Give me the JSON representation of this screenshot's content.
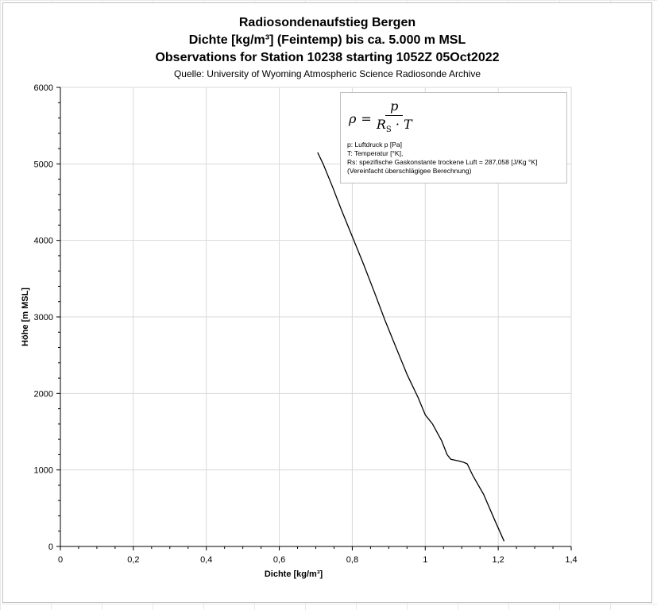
{
  "chart_data": {
    "type": "line",
    "title": [
      "Radiosondenaufstieg Bergen",
      "Dichte [kg/m³] (Feintemp) bis ca. 5.000 m MSL",
      "Observations for Station 10238 starting 1052Z 05Oct2022"
    ],
    "subtitle": "Quelle: University of Wyoming Atmospheric Science Radiosonde Archive",
    "xlabel": "Dichte [kg/m³]",
    "ylabel": "Höhe [m MSL]",
    "xlim": [
      0,
      1.4
    ],
    "ylim": [
      0,
      6000
    ],
    "x_ticks": [
      "0",
      "0,2",
      "0,4",
      "0,6",
      "0,8",
      "1",
      "1,2",
      "1,4"
    ],
    "y_ticks": [
      "0",
      "1000",
      "2000",
      "3000",
      "4000",
      "5000",
      "6000"
    ],
    "grid": true,
    "series": [
      {
        "color": "#000000",
        "x": [
          1.216,
          1.19,
          1.16,
          1.13,
          1.115,
          1.105,
          1.09,
          1.07,
          1.06,
          1.045,
          1.02,
          1.0,
          0.98,
          0.95,
          0.92,
          0.89,
          0.86,
          0.83,
          0.8,
          0.77,
          0.745,
          0.72,
          0.705
        ],
        "y": [
          70,
          350,
          680,
          930,
          1080,
          1100,
          1120,
          1140,
          1200,
          1380,
          1600,
          1720,
          1950,
          2250,
          2600,
          2950,
          3330,
          3700,
          4050,
          4400,
          4710,
          5000,
          5150
        ]
      }
    ]
  },
  "formula": {
    "lhs": "ρ",
    "numerator": "p",
    "denominator_main": "R",
    "denominator_sub": "S",
    "denominator_rest": "· T"
  },
  "notes": [
    "p: Luftdruck p [Pa]",
    "T: Temperatur [°K],",
    "Rs: spezifische Gaskonstante trockene Luft = 287,058 [J/Kg °K]",
    "(Vereinfacht überschlägigee Berechnung)"
  ]
}
